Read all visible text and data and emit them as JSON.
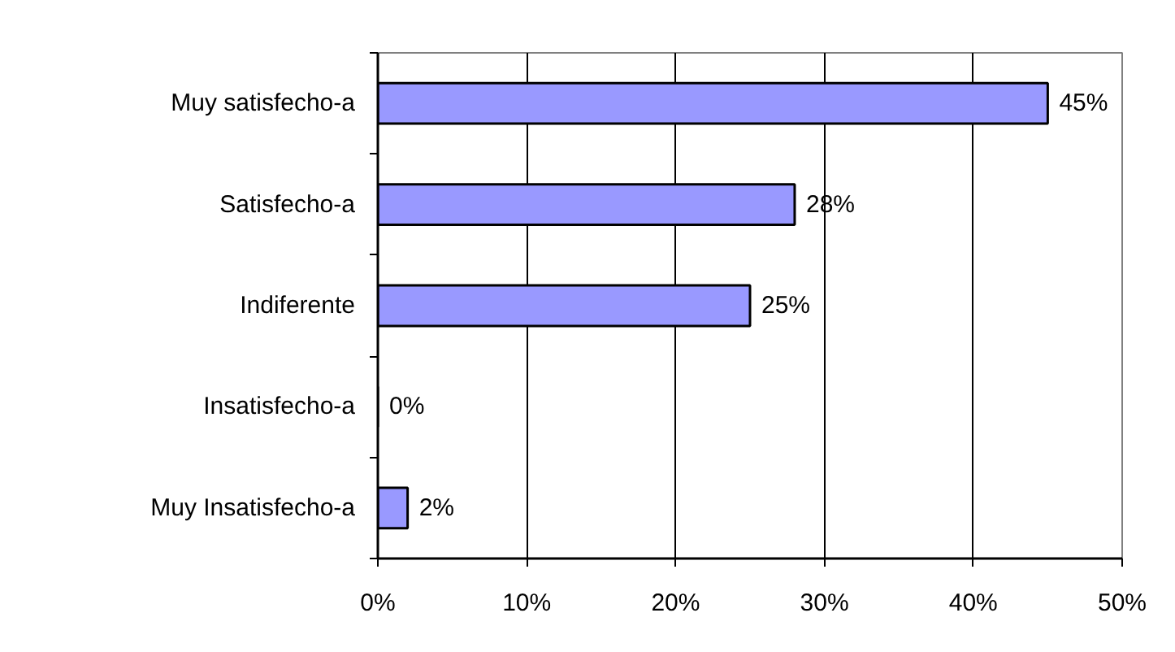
{
  "chart_data": {
    "type": "bar",
    "orientation": "horizontal",
    "categories": [
      "Muy satisfecho-a",
      "Satisfecho-a",
      "Indiferente",
      "Insatisfecho-a",
      "Muy Insatisfecho-a"
    ],
    "values": [
      45,
      28,
      25,
      0,
      2
    ],
    "color": "#9999ff",
    "value_labels": [
      "45%",
      "28%",
      "25%",
      "0%",
      "2%"
    ],
    "xlim": [
      0,
      50
    ],
    "xticks": [
      {
        "value": 0,
        "label": "0%"
      },
      {
        "value": 10,
        "label": "10%"
      },
      {
        "value": 20,
        "label": "20%"
      },
      {
        "value": 30,
        "label": "30%"
      },
      {
        "value": 40,
        "label": "40%"
      },
      {
        "value": 50,
        "label": "50%"
      }
    ],
    "grid": "x"
  }
}
